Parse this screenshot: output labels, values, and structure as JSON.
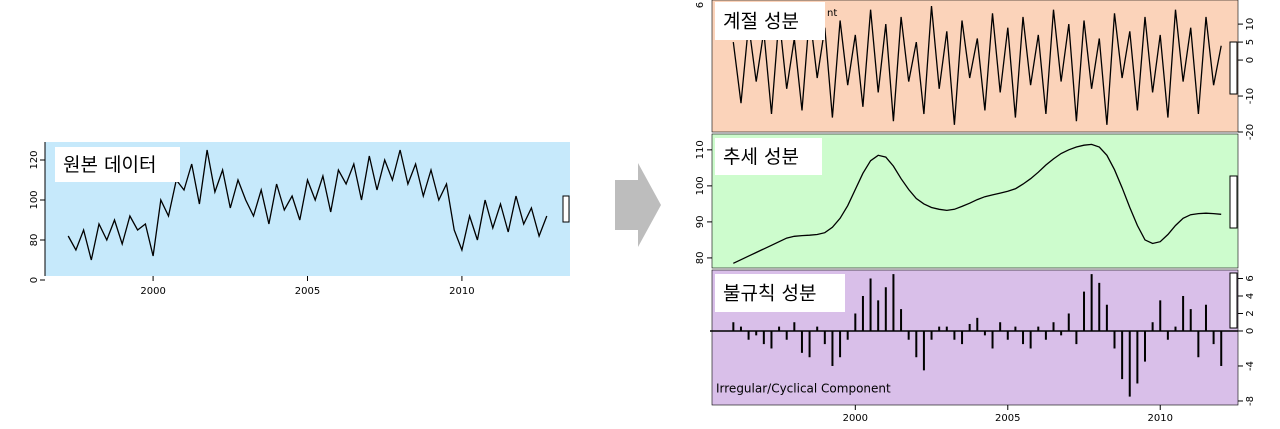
{
  "chart_data": [
    {
      "type": "line",
      "label": "원본 데이터",
      "background": "#c6e9fb",
      "xlim": [
        1996.5,
        2013.5
      ],
      "xticks": [
        2000,
        2005,
        2010
      ],
      "ylim": [
        62,
        129
      ],
      "yticks": [
        {
          "value": 60,
          "label": "0"
        },
        80,
        100,
        120
      ],
      "x": [
        1997.25,
        1997.5,
        1997.75,
        1998,
        1998.25,
        1998.5,
        1998.75,
        1999,
        1999.25,
        1999.5,
        1999.75,
        2000,
        2000.25,
        2000.5,
        2000.75,
        2001,
        2001.25,
        2001.5,
        2001.75,
        2002,
        2002.25,
        2002.5,
        2002.75,
        2003,
        2003.25,
        2003.5,
        2003.75,
        2004,
        2004.25,
        2004.5,
        2004.75,
        2005,
        2005.25,
        2005.5,
        2005.75,
        2006,
        2006.25,
        2006.5,
        2006.75,
        2007,
        2007.25,
        2007.5,
        2007.75,
        2008,
        2008.25,
        2008.5,
        2008.75,
        2009,
        2009.25,
        2009.5,
        2009.75,
        2010,
        2010.25,
        2010.5,
        2010.75,
        2011,
        2011.25,
        2011.5,
        2011.75,
        2012,
        2012.25,
        2012.5,
        2012.75
      ],
      "series": [
        {
          "color": "#000000",
          "values": [
            82,
            75,
            85,
            70,
            88,
            80,
            90,
            78,
            92,
            85,
            88,
            72,
            100,
            92,
            110,
            105,
            118,
            98,
            125,
            104,
            115,
            96,
            110,
            100,
            92,
            105,
            88,
            108,
            95,
            102,
            90,
            110,
            100,
            112,
            94,
            115,
            108,
            118,
            100,
            122,
            105,
            120,
            110,
            125,
            108,
            118,
            102,
            115,
            100,
            108,
            85,
            75,
            92,
            80,
            100,
            86,
            98,
            84,
            102,
            88,
            96,
            82,
            92
          ]
        }
      ]
    },
    {
      "type": "decomposition",
      "xlim": [
        1995.3,
        2012.55
      ],
      "xticks": [
        2000,
        2005,
        2010
      ],
      "x": [
        1996,
        1996.25,
        1996.5,
        1996.75,
        1997,
        1997.25,
        1997.5,
        1997.75,
        1998,
        1998.25,
        1998.5,
        1998.75,
        1999,
        1999.25,
        1999.5,
        1999.75,
        2000,
        2000.25,
        2000.5,
        2000.75,
        2001,
        2001.25,
        2001.5,
        2001.75,
        2002,
        2002.25,
        2002.5,
        2002.75,
        2003,
        2003.25,
        2003.5,
        2003.75,
        2004,
        2004.25,
        2004.5,
        2004.75,
        2005,
        2005.25,
        2005.5,
        2005.75,
        2006,
        2006.25,
        2006.5,
        2006.75,
        2007,
        2007.25,
        2007.5,
        2007.75,
        2008,
        2008.25,
        2008.5,
        2008.75,
        2009,
        2009.25,
        2009.5,
        2009.75,
        2010,
        2010.25,
        2010.5,
        2010.75,
        2011,
        2011.25,
        2011.5,
        2011.75,
        2012
      ],
      "panels": [
        {
          "type": "line",
          "label": "계절 성분",
          "annotation": "nt",
          "left_label": "6",
          "background": "#fbd3ba",
          "color": "#000000",
          "axis_side": "right",
          "ylim": [
            -20,
            16.7
          ],
          "yticks": [
            -20,
            -10,
            0,
            5,
            10
          ],
          "values": [
            5,
            -12,
            10,
            -6,
            8,
            -15,
            12,
            -8,
            6,
            -14,
            13,
            -5,
            9,
            -16,
            11,
            -7,
            7,
            -13,
            14,
            -9,
            10,
            -17,
            12,
            -6,
            5,
            -15,
            15,
            -8,
            8,
            -18,
            11,
            -5,
            6,
            -14,
            13,
            -9,
            9,
            -16,
            12,
            -7,
            7,
            -15,
            14,
            -6,
            10,
            -17,
            11,
            -8,
            6,
            -18,
            13,
            -5,
            8,
            -14,
            12,
            -9,
            7,
            -16,
            14,
            -6,
            9,
            -15,
            12,
            -7,
            4
          ]
        },
        {
          "type": "line",
          "label": "추세 성분",
          "background": "#cdfccd",
          "color": "#000000",
          "axis_side": "left",
          "ylim": [
            77.2,
            114.4
          ],
          "yticks": [
            80,
            90,
            100,
            110
          ],
          "values": [
            78.5,
            79.5,
            80.5,
            81.5,
            82.5,
            83.5,
            84.5,
            85.5,
            86,
            86.2,
            86.3,
            86.5,
            87,
            88.5,
            91,
            94.5,
            99,
            103.5,
            107,
            108.5,
            108,
            105.5,
            102,
            99,
            96.5,
            95,
            94,
            93.5,
            93.2,
            93.5,
            94.3,
            95.2,
            96.2,
            97,
            97.5,
            98,
            98.5,
            99.2,
            100.5,
            102,
            103.8,
            105.8,
            107.5,
            109,
            110,
            110.8,
            111.3,
            111.5,
            110.8,
            108.5,
            104.5,
            99.5,
            94,
            89,
            85,
            84,
            84.5,
            86.5,
            89,
            91,
            92,
            92.3,
            92.4,
            92.3,
            92.1
          ]
        },
        {
          "type": "bar",
          "label": "불규칙 성분",
          "annotation": "Irregular/Cyclical Component",
          "background": "#d9bfe9",
          "color": "#000000",
          "axis_side": "right",
          "ylim": [
            -8.46,
            6.97
          ],
          "yticks": [
            -8,
            -4,
            0,
            2,
            4,
            6
          ],
          "values": [
            1,
            0.5,
            -1,
            -0.5,
            -1.5,
            -2,
            0.5,
            -1,
            1,
            -2.5,
            -3,
            0.5,
            -1.5,
            -4,
            -3,
            -1,
            2,
            4,
            6,
            3.5,
            5,
            6.5,
            2.5,
            -1,
            -3,
            -4.5,
            -1,
            0.5,
            0.5,
            -1,
            -1.5,
            0.8,
            1.5,
            -0.5,
            -2,
            1,
            -1,
            0.5,
            -1.5,
            -2,
            0.5,
            -1,
            1,
            -0.5,
            2,
            -1.5,
            4.5,
            6.5,
            5.5,
            3,
            -2,
            -5.5,
            -7.5,
            -6,
            -3.5,
            1,
            3.5,
            -1,
            0.5,
            4,
            2.5,
            -3,
            3,
            -1.5,
            -4
          ]
        }
      ]
    }
  ]
}
